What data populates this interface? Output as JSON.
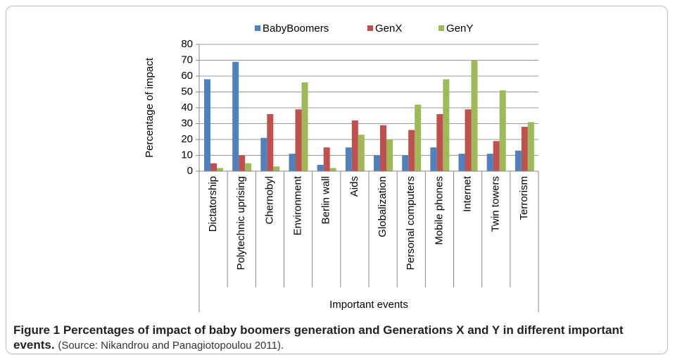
{
  "chart_data": {
    "type": "bar",
    "categories": [
      "Dictatorship",
      "Polytechnic uprising",
      "Chernobyl",
      "Environment",
      "Berlin wall",
      "Aids",
      "Globalization",
      "Personal computers",
      "Mobile phones",
      "Internet",
      "Twin towers",
      "Terrorism"
    ],
    "series": [
      {
        "name": "BabyBoomers",
        "color": "#4f81bd",
        "values": [
          58,
          69,
          21,
          11,
          4,
          15,
          10,
          10,
          15,
          11,
          11,
          13
        ]
      },
      {
        "name": "GenX",
        "color": "#c0504d",
        "values": [
          5,
          10,
          36,
          39,
          15,
          32,
          29,
          26,
          36,
          39,
          19,
          28
        ]
      },
      {
        "name": "GenY",
        "color": "#9bbb59",
        "values": [
          2,
          5,
          3,
          56,
          2,
          23,
          20,
          42,
          58,
          70,
          51,
          31
        ]
      }
    ],
    "y_label": "Percentage of impact",
    "x_label": "Important events",
    "ylim": [
      0,
      80
    ],
    "yticks": [
      0,
      10,
      20,
      30,
      40,
      50,
      60,
      70,
      80
    ],
    "grid": true,
    "legend": "top"
  },
  "caption": {
    "title": "Figure 1 Percentages of impact of baby boomers generation and Generations X and Y in different important events.",
    "source": "(Source: Nikandrou and Panagiotopoulou 2011)."
  }
}
